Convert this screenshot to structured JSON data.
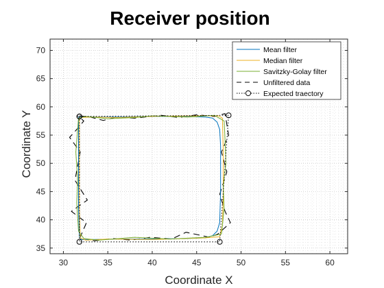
{
  "chart_data": {
    "type": "line",
    "title": "Receiver position",
    "xlabel": "Coordinate X",
    "ylabel": "Coordinate Y",
    "xlim": [
      28.5,
      62
    ],
    "ylim": [
      34,
      72
    ],
    "xticks": [
      30,
      35,
      40,
      45,
      50,
      55,
      60
    ],
    "yticks": [
      35,
      40,
      45,
      50,
      55,
      60,
      65,
      70
    ],
    "grid": "on (dotted minor)",
    "legend_position": "top-right",
    "series": [
      {
        "name": "Mean filter",
        "color": "#0072BD",
        "style": "solid",
        "x": [
          31.7,
          33,
          36,
          40,
          44,
          46,
          46.8,
          47.3,
          47.6,
          47.7,
          47.7,
          47.6,
          47.3,
          46.8,
          46,
          44,
          40,
          36,
          33,
          32,
          31.8,
          31.7,
          31.7,
          31.7
        ],
        "y": [
          58.2,
          58.2,
          58.2,
          58.3,
          58.3,
          58.2,
          58.0,
          57.3,
          56.0,
          53,
          45,
          39.5,
          38.0,
          37.2,
          36.8,
          36.7,
          36.6,
          36.6,
          36.5,
          36.5,
          37,
          42,
          50,
          58.2
        ]
      },
      {
        "name": "Median filter",
        "color": "#EDB120",
        "style": "solid",
        "x": [
          31.8,
          33,
          36,
          40,
          44,
          47.5,
          47.9,
          48.0,
          48.0,
          47.9,
          47.6,
          46,
          40,
          35,
          32.5,
          31.9,
          31.8,
          31.8,
          31.8
        ],
        "y": [
          58.1,
          58.2,
          58.1,
          58.3,
          58.4,
          58.4,
          58.0,
          52,
          44,
          39,
          37.0,
          36.8,
          36.5,
          36.6,
          36.4,
          36.8,
          42,
          50,
          58.1
        ]
      },
      {
        "name": "Savitzky-Golay filter",
        "color": "#77AC30",
        "style": "solid",
        "x": [
          31.7,
          32.5,
          35,
          38,
          40,
          44,
          47,
          48.1,
          48.2,
          48.3,
          48.0,
          48.1,
          47.8,
          46,
          42,
          38,
          34,
          32.3,
          31.7,
          31.5,
          31.6,
          31.4,
          31.7
        ],
        "y": [
          58.0,
          58.3,
          57.9,
          58.1,
          58.4,
          58.2,
          58.5,
          57.5,
          54,
          50,
          46,
          42,
          37.5,
          36.9,
          36.6,
          36.9,
          36.4,
          36.7,
          38,
          43,
          47,
          52,
          58.0
        ]
      },
      {
        "name": "Unfiltered data",
        "color": "#000000",
        "style": "dashed",
        "x": [
          31.8,
          33,
          34.5,
          36,
          38,
          41,
          43,
          45,
          47,
          48.2,
          48.6,
          47.8,
          48.4,
          47.6,
          48.2,
          48.8,
          47.4,
          46.5,
          43.8,
          42.2,
          39.8,
          37.6,
          35.5,
          33.5,
          31.8,
          32.6,
          30.9,
          32.7,
          31.3,
          31.9,
          30.7,
          31.5,
          32.3,
          31.6
        ],
        "y": [
          58.4,
          58.2,
          57.6,
          58.2,
          58.0,
          58.5,
          58.1,
          58.6,
          58.3,
          58.8,
          55,
          52,
          48.5,
          44.5,
          41.5,
          39.5,
          37.5,
          36.9,
          37.8,
          36.6,
          36.9,
          36.4,
          36.7,
          36.3,
          36.6,
          39.5,
          41.5,
          43.5,
          47,
          52,
          54.6,
          56,
          57.5,
          58.4
        ]
      },
      {
        "name": "Expected traectory",
        "color": "#000000",
        "style": "dotted",
        "marker": "circle",
        "x": [
          31.8,
          48.6,
          47.6,
          31.8,
          31.8
        ],
        "y": [
          58.3,
          58.5,
          36.1,
          36.1,
          58.3
        ]
      }
    ]
  }
}
